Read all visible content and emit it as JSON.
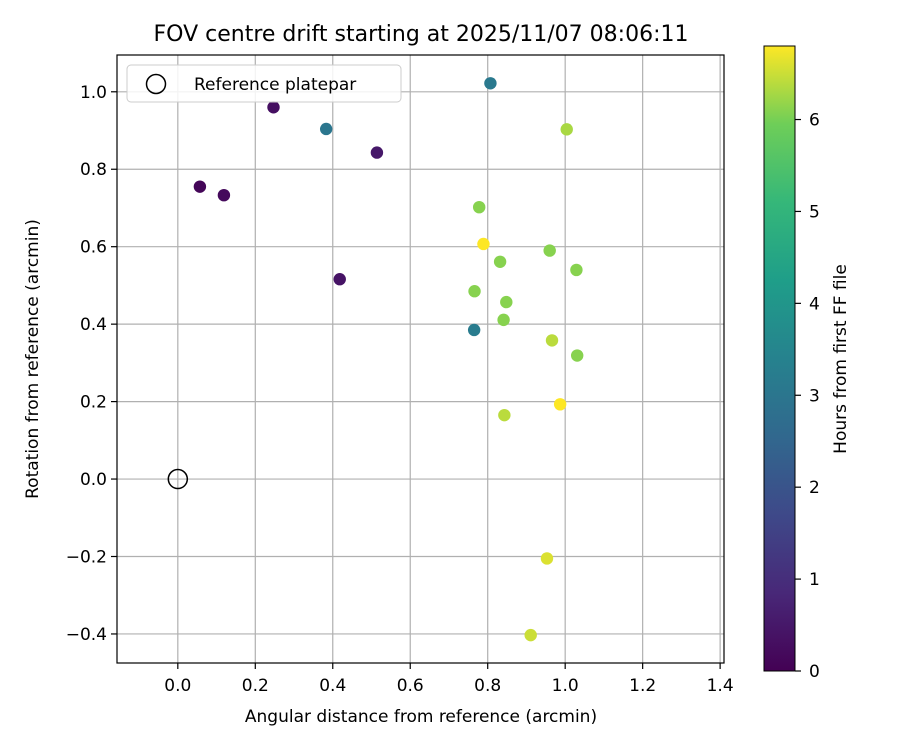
{
  "chart_data": {
    "type": "scatter",
    "title": "FOV centre drift starting at 2025/11/07 08:06:11",
    "xlabel": "Angular distance from reference (arcmin)",
    "ylabel": "Rotation from reference (arcmin)",
    "xlim": [
      -0.157,
      1.41
    ],
    "ylim": [
      -0.475,
      1.095
    ],
    "xticks": [
      0.0,
      0.2,
      0.4,
      0.6,
      0.8,
      1.0,
      1.2,
      1.4
    ],
    "xtick_labels": [
      "0.0",
      "0.2",
      "0.4",
      "0.6",
      "0.8",
      "1.0",
      "1.2",
      "1.4"
    ],
    "yticks": [
      -0.4,
      -0.2,
      0.0,
      0.2,
      0.4,
      0.6,
      0.8,
      1.0
    ],
    "ytick_labels": [
      "−0.4",
      "−0.2",
      "0.0",
      "0.2",
      "0.4",
      "0.6",
      "0.8",
      "1.0"
    ],
    "grid": true,
    "legend": {
      "position": "top-left",
      "entries": [
        "Reference platepar"
      ]
    },
    "reference_point": {
      "x": 0.0,
      "y": 0.0,
      "label": "Reference platepar"
    },
    "colorbar": {
      "label": "Hours from first FF file",
      "range": [
        0,
        6.8
      ],
      "ticks": [
        0,
        1,
        2,
        3,
        4,
        5,
        6
      ],
      "tick_labels": [
        "0",
        "1",
        "2",
        "3",
        "4",
        "5",
        "6"
      ],
      "colormap": "viridis"
    },
    "points": [
      {
        "x": 0.057,
        "y": 0.755,
        "hours": 0.1
      },
      {
        "x": 0.119,
        "y": 0.733,
        "hours": 0.2
      },
      {
        "x": 0.247,
        "y": 0.96,
        "hours": 0.3
      },
      {
        "x": 0.418,
        "y": 0.516,
        "hours": 0.4
      },
      {
        "x": 0.514,
        "y": 0.843,
        "hours": 0.5
      },
      {
        "x": 0.383,
        "y": 0.904,
        "hours": 3.0
      },
      {
        "x": 0.807,
        "y": 1.022,
        "hours": 3.1
      },
      {
        "x": 0.765,
        "y": 0.385,
        "hours": 3.2
      },
      {
        "x": 0.778,
        "y": 0.702,
        "hours": 6.1
      },
      {
        "x": 0.766,
        "y": 0.485,
        "hours": 6.1
      },
      {
        "x": 0.832,
        "y": 0.561,
        "hours": 6.1
      },
      {
        "x": 0.841,
        "y": 0.411,
        "hours": 6.1
      },
      {
        "x": 0.848,
        "y": 0.457,
        "hours": 6.1
      },
      {
        "x": 0.96,
        "y": 0.59,
        "hours": 6.1
      },
      {
        "x": 1.029,
        "y": 0.54,
        "hours": 6.1
      },
      {
        "x": 1.031,
        "y": 0.319,
        "hours": 6.1
      },
      {
        "x": 1.004,
        "y": 0.903,
        "hours": 6.3
      },
      {
        "x": 0.966,
        "y": 0.358,
        "hours": 6.4
      },
      {
        "x": 0.843,
        "y": 0.165,
        "hours": 6.4
      },
      {
        "x": 0.911,
        "y": -0.403,
        "hours": 6.5
      },
      {
        "x": 0.953,
        "y": -0.205,
        "hours": 6.6
      },
      {
        "x": 0.987,
        "y": 0.193,
        "hours": 6.8
      },
      {
        "x": 0.789,
        "y": 0.607,
        "hours": 6.8
      }
    ]
  }
}
